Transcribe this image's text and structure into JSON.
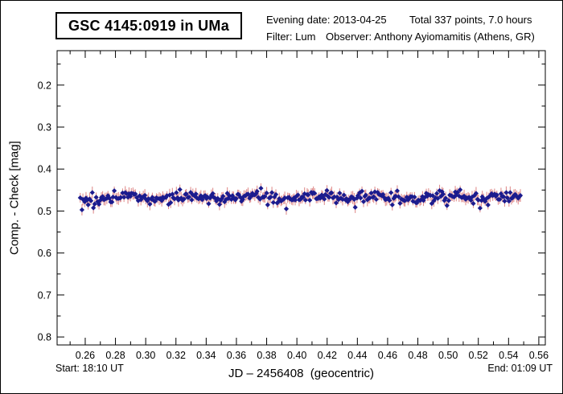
{
  "header": {
    "title": "GSC 4145:0919 in UMa",
    "evening_date": "Evening date: 2013-04-25",
    "total_points": "Total 337 points, 7.0 hours",
    "filter": "Filter: Lum",
    "observer": "Observer: Anthony Ayiomamitis (Athens, GR)"
  },
  "footer": {
    "start": "Start: 18:10 UT",
    "end": "End: 01:09 UT"
  },
  "chart_data": {
    "type": "scatter",
    "title": "GSC 4145:0919 in UMa",
    "xlabel": "JD – 2456408  (geocentric)",
    "ylabel": "Comp. - Check [mag]",
    "grid": false,
    "legend": "none",
    "x_axis": {
      "min": 0.2414,
      "max": 0.5643,
      "major_ticks": [
        0.26,
        0.28,
        0.3,
        0.32,
        0.34,
        0.36,
        0.38,
        0.4,
        0.42,
        0.44,
        0.46,
        0.48,
        0.5,
        0.52,
        0.54,
        0.56
      ],
      "minor_ticks": [
        0.25,
        0.27,
        0.29,
        0.31,
        0.33,
        0.35,
        0.37,
        0.39,
        0.41,
        0.43,
        0.45,
        0.47,
        0.49,
        0.51,
        0.53,
        0.55
      ],
      "label_decimals": 2
    },
    "y_axis": {
      "min": 0.118,
      "max": 0.819,
      "inverted": true,
      "major_ticks": [
        0.2,
        0.3,
        0.4,
        0.5,
        0.6,
        0.7,
        0.8
      ],
      "minor_ticks": [
        0.15,
        0.25,
        0.35,
        0.45,
        0.55,
        0.65,
        0.75
      ],
      "label_decimals": 1
    },
    "series": [
      {
        "name": "Comp. - Check",
        "marker": "diamond",
        "marker_color": "#1b1b8e",
        "errorbar_color": "#e09090",
        "n_points": 337,
        "x_start": 0.2569,
        "x_end": 0.5479,
        "y_mean": 0.468,
        "y_scatter_sd": 0.0065,
        "wobble_amplitude": 0.004,
        "wobble_period": 0.042,
        "errorbar_half_mag": 0.012,
        "seed": 337
      }
    ],
    "axis_color": "#000000",
    "background_color": "#ffffff"
  }
}
